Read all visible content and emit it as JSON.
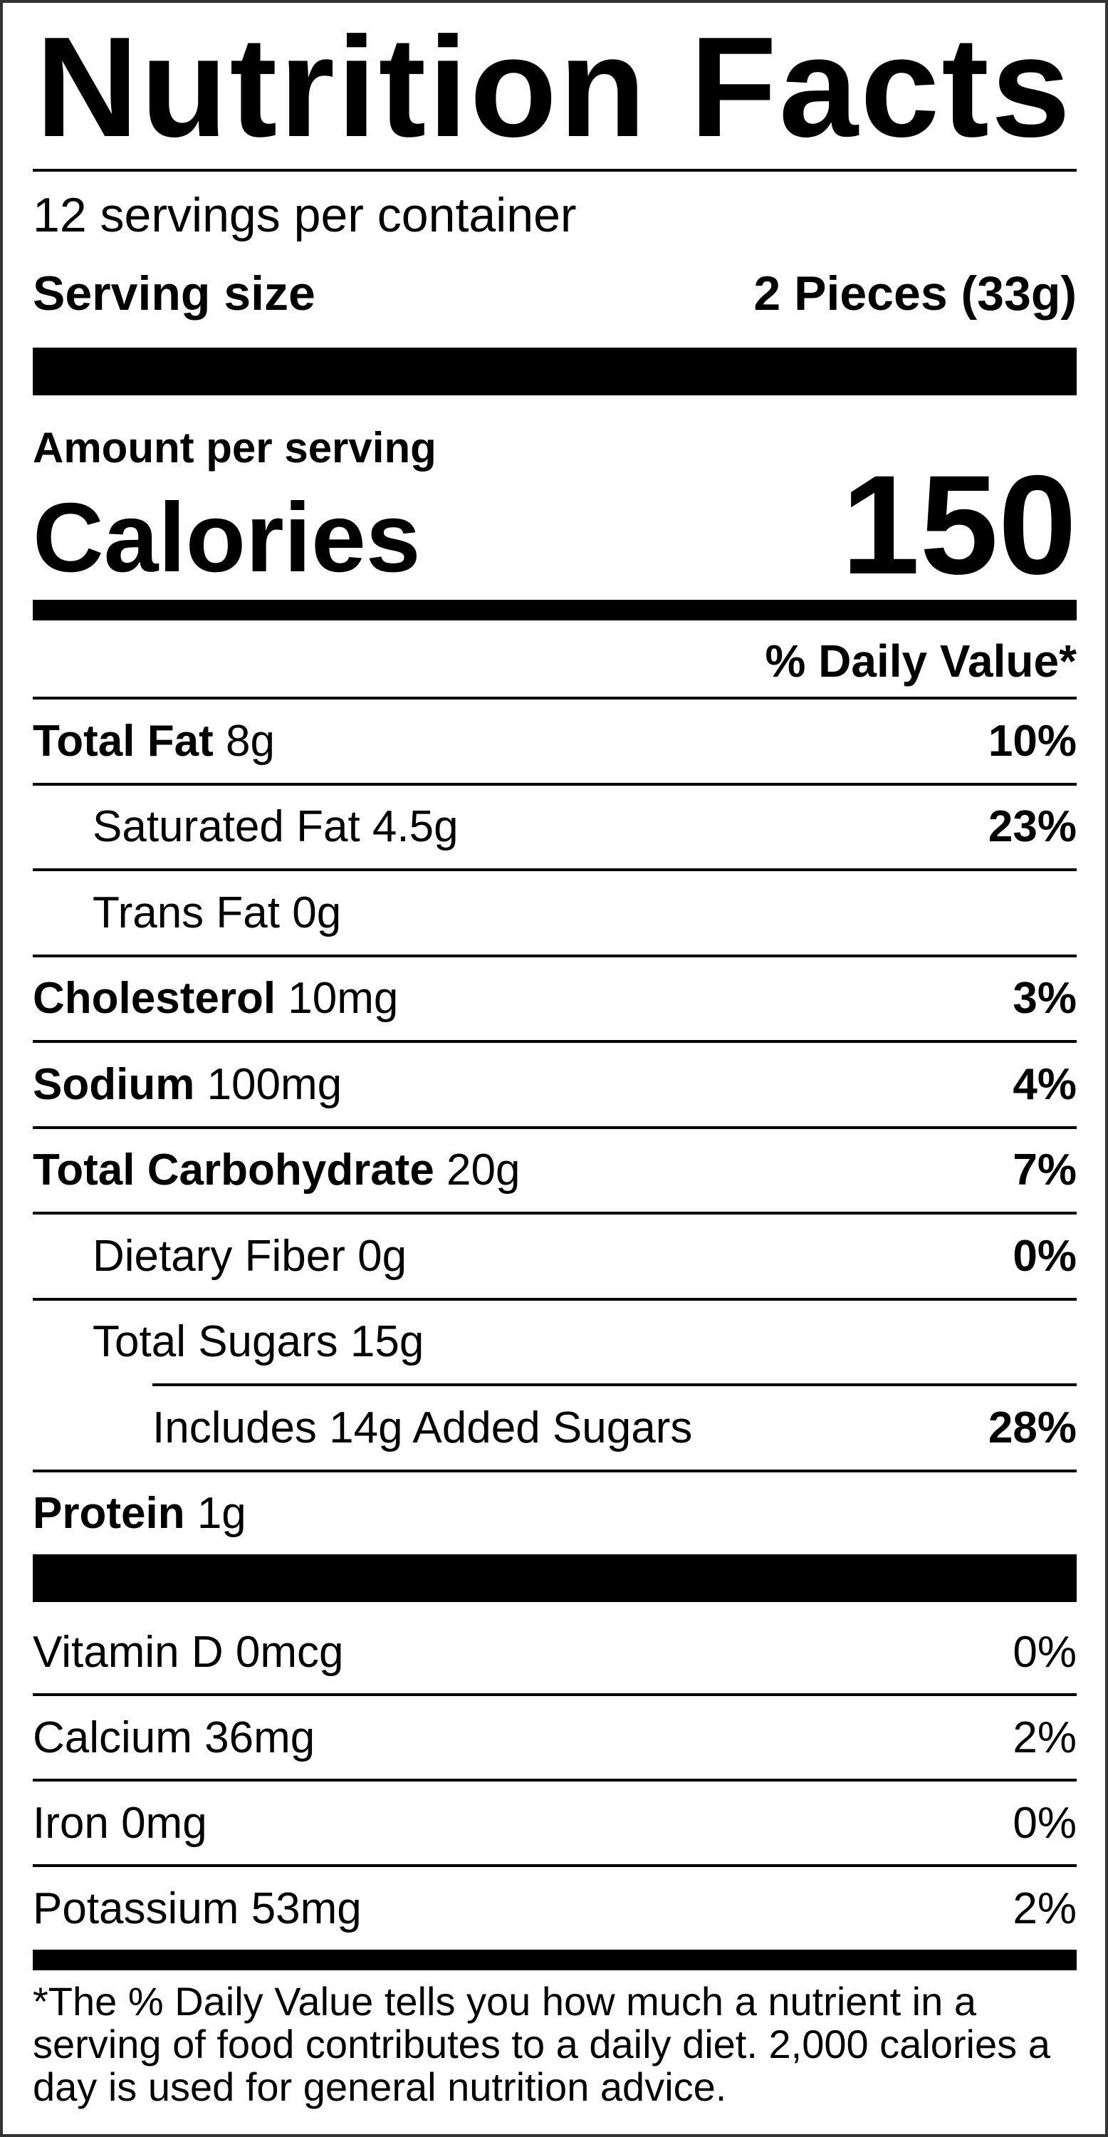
{
  "title": "Nutrition Facts",
  "servings_per_container": "12 servings per container",
  "serving_size_label": "Serving size",
  "serving_size_value": "2 Pieces (33g)",
  "amount_per_serving": "Amount per serving",
  "calories_label": "Calories",
  "calories_value": "150",
  "daily_value_header": "% Daily Value*",
  "nutrients": [
    {
      "name": "Total Fat",
      "amount": "8g",
      "dv": "10%"
    },
    {
      "name": "Saturated Fat",
      "amount": "4.5g",
      "dv": "23%"
    },
    {
      "name": "Trans Fat",
      "amount": "0g",
      "dv": ""
    },
    {
      "name": "Cholesterol",
      "amount": "10mg",
      "dv": "3%"
    },
    {
      "name": "Sodium",
      "amount": "100mg",
      "dv": "4%"
    },
    {
      "name": "Total Carbohydrate",
      "amount": "20g",
      "dv": "7%"
    },
    {
      "name": "Dietary Fiber",
      "amount": "0g",
      "dv": "0%"
    },
    {
      "name": "Total Sugars",
      "amount": "15g",
      "dv": ""
    },
    {
      "name": "Includes 14g Added Sugars",
      "amount": "",
      "dv": "28%"
    },
    {
      "name": "Protein",
      "amount": "1g",
      "dv": ""
    }
  ],
  "vitamins": [
    {
      "name": "Vitamin D",
      "amount": "0mcg",
      "dv": "0%"
    },
    {
      "name": "Calcium",
      "amount": "36mg",
      "dv": "2%"
    },
    {
      "name": "Iron",
      "amount": "0mg",
      "dv": "0%"
    },
    {
      "name": "Potassium",
      "amount": "53mg",
      "dv": "2%"
    }
  ],
  "footnote": "*The % Daily Value tells you how much a nutrient in a serving of food contributes to a daily diet. 2,000 calories a day is used for general nutrition advice."
}
